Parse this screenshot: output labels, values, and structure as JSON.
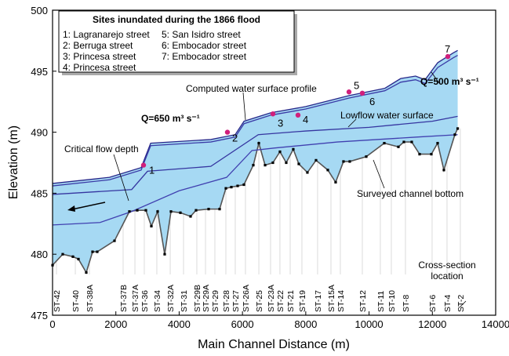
{
  "chart_data": {
    "type": "line",
    "x_label": "Main Channel Distance (m)",
    "y_label": "Elevation (m)",
    "xlim": [
      0,
      14000
    ],
    "ylim": [
      475,
      500
    ],
    "xticks": [
      0,
      2000,
      4000,
      6000,
      8000,
      10000,
      12000,
      14000
    ],
    "yticks": [
      475,
      480,
      485,
      490,
      495,
      500
    ],
    "fill_color": "#a6d9f3",
    "series": [
      {
        "name": "Computed water surface profile",
        "discharge_label": "Q=650 m³ s⁻¹",
        "color": "#28288a",
        "x": [
          0,
          1800,
          2800,
          3100,
          5000,
          5770,
          6050,
          6900,
          8000,
          9370,
          10500,
          11000,
          11470,
          11770,
          12170,
          12660,
          12800
        ],
        "values": [
          485.8,
          486.3,
          487.1,
          489.1,
          489.4,
          489.8,
          490.9,
          491.6,
          492.1,
          493.0,
          493.6,
          494.4,
          494.6,
          494.3,
          495.7,
          496.5,
          496.7
        ]
      },
      {
        "name": "Surveyed channel bottom",
        "color": "#555555",
        "x": [
          0,
          322,
          644,
          818,
          1065,
          1264,
          1412,
          1957,
          2428,
          2676,
          2949,
          3122,
          3320,
          3543,
          3741,
          4039,
          4361,
          4534,
          4931,
          5278,
          5476,
          5649,
          5848,
          6046,
          6343,
          6517,
          6715,
          6962,
          7185,
          7383,
          7606,
          7780,
          8052,
          8325,
          8697,
          8944,
          9192,
          9390,
          9911,
          10481,
          10927,
          11100,
          11348,
          11596,
          11968,
          12166,
          12364,
          12711,
          12800
        ],
        "values": [
          479.1,
          480.0,
          479.8,
          479.6,
          478.5,
          480.2,
          480.2,
          481.1,
          483.5,
          483.6,
          483.6,
          482.3,
          483.5,
          480.0,
          483.5,
          483.4,
          483.1,
          483.6,
          483.7,
          483.7,
          485.4,
          485.5,
          485.6,
          485.7,
          487.3,
          489.1,
          487.3,
          487.5,
          488.4,
          487.5,
          488.6,
          487.4,
          486.7,
          487.7,
          486.9,
          485.9,
          487.6,
          487.6,
          488.0,
          489.1,
          488.8,
          489.2,
          489.2,
          488.2,
          488.2,
          489.1,
          486.9,
          489.8,
          490.3
        ]
      },
      {
        "name": "Q=500 m³ s⁻¹",
        "color": "#3a3aa6",
        "x": [
          0,
          1800,
          2800,
          3100,
          5000,
          5770,
          6050,
          6900,
          8000,
          9370,
          10500,
          11000,
          11470,
          11770,
          12170,
          12660,
          12800
        ],
        "values": [
          485.6,
          486.1,
          486.9,
          488.9,
          489.2,
          489.6,
          490.7,
          491.4,
          491.9,
          492.8,
          493.4,
          494.1,
          494.3,
          494.0,
          495.3,
          496.1,
          496.3
        ]
      },
      {
        "name": "Lowflow water surface",
        "color": "#3535a0",
        "x": [
          0,
          2500,
          3000,
          5000,
          6500,
          8000,
          10000,
          12000,
          12800
        ],
        "values": [
          484.9,
          485.3,
          486.8,
          487.2,
          489.8,
          490.1,
          490.4,
          490.9,
          491.3
        ]
      },
      {
        "name": "Critical flow depth",
        "color": "#4040b0",
        "x": [
          0,
          1500,
          2500,
          4000,
          5500,
          6300,
          7000,
          9000,
          11500,
          12800
        ],
        "values": [
          482.4,
          482.6,
          483.5,
          485.2,
          486.3,
          488.5,
          488.7,
          489.2,
          489.6,
          489.8
        ]
      }
    ],
    "sites": {
      "title": "Sites inundated during the 1866 flood",
      "color": "#d01f7c",
      "items": [
        {
          "entry": "1: Lagranarejo street",
          "label": "1",
          "x": 2874,
          "y": 487.3
        },
        {
          "entry": "2: Berruga street",
          "label": "2",
          "x": 5525,
          "y": 490.0
        },
        {
          "entry": "3: Princesa street",
          "label": "3",
          "x": 6962,
          "y": 491.5
        },
        {
          "entry": "4: Princesa street",
          "label": "4",
          "x": 7755,
          "y": 491.4
        },
        {
          "entry": "5: San Isidro street",
          "label": "5",
          "x": 9366,
          "y": 493.3
        },
        {
          "entry": "6: Embocador street",
          "label": "6",
          "x": 9787,
          "y": 493.2
        },
        {
          "entry": "7: Embocador street",
          "label": "7",
          "x": 12488,
          "y": 496.2
        }
      ]
    },
    "cross_section_label": "Cross-section location",
    "sections": [
      {
        "name": "ST-42",
        "x": 124
      },
      {
        "name": "ST-40",
        "x": 719
      },
      {
        "name": "ST-38A",
        "x": 1165
      },
      {
        "name": "ST-37B",
        "x": 2230
      },
      {
        "name": "ST-37A",
        "x": 2602
      },
      {
        "name": "ST-36",
        "x": 2899
      },
      {
        "name": "ST-34",
        "x": 3295
      },
      {
        "name": "ST-32A",
        "x": 3717
      },
      {
        "name": "ST-31",
        "x": 4138
      },
      {
        "name": "ST-29B",
        "x": 4559
      },
      {
        "name": "ST-29A",
        "x": 4832
      },
      {
        "name": "ST-29",
        "x": 5129
      },
      {
        "name": "ST-28",
        "x": 5476
      },
      {
        "name": "ST-27",
        "x": 5773
      },
      {
        "name": "ST-26A",
        "x": 6095
      },
      {
        "name": "ST-25",
        "x": 6517
      },
      {
        "name": "ST-23A",
        "x": 6888
      },
      {
        "name": "ST-22",
        "x": 7185
      },
      {
        "name": "ST-21",
        "x": 7508
      },
      {
        "name": "ST-19",
        "x": 7879
      },
      {
        "name": "ST-17",
        "x": 8374
      },
      {
        "name": "ST-15A",
        "x": 8796
      },
      {
        "name": "ST-14",
        "x": 9093
      },
      {
        "name": "ST-12",
        "x": 9787
      },
      {
        "name": "ST-11",
        "x": 10357
      },
      {
        "name": "ST-10",
        "x": 10704
      },
      {
        "name": "ST-8",
        "x": 11150
      },
      {
        "name": "ST-6",
        "x": 11992
      },
      {
        "name": "ST-4",
        "x": 12463
      },
      {
        "name": "ST-2",
        "x": 12884
      }
    ]
  }
}
